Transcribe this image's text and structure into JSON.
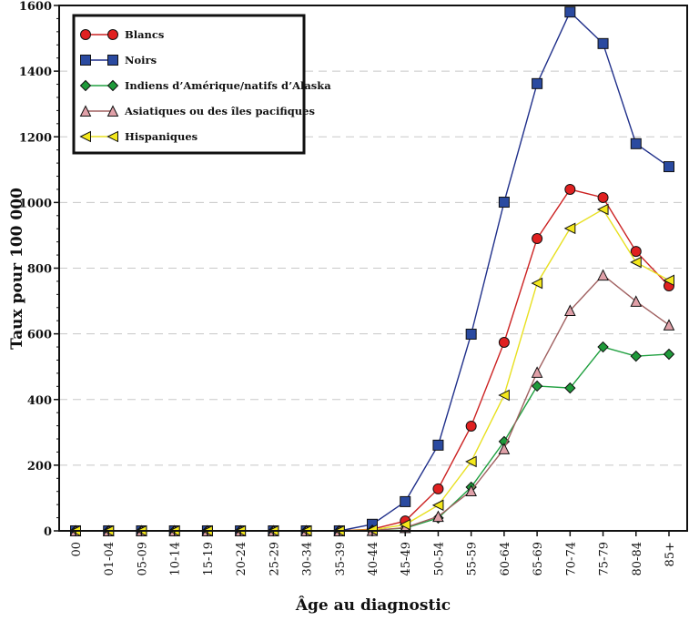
{
  "chart_data": {
    "type": "line",
    "title": "",
    "xlabel": "Âge au diagnostic",
    "ylabel": "Taux pour 100 000",
    "ylim": [
      0,
      1600
    ],
    "yticks": [
      0,
      200,
      400,
      600,
      800,
      1000,
      1200,
      1400,
      1600
    ],
    "grid": "horizontal dashed",
    "legend_position": "top-left",
    "categories": [
      "00",
      "01-04",
      "05-09",
      "10-14",
      "15-19",
      "20-24",
      "25-29",
      "30-34",
      "35-39",
      "40-44",
      "45-49",
      "50-54",
      "55-59",
      "60-64",
      "65-69",
      "70-74",
      "75-79",
      "80-84",
      "85+"
    ],
    "series": [
      {
        "name": "Blancs",
        "color": "#cc2222",
        "fill": "#e02020",
        "marker": "circle",
        "values": [
          0,
          0,
          0,
          0,
          0,
          0,
          0,
          0,
          0,
          5,
          30,
          128,
          319,
          574,
          890,
          1040,
          1015,
          851,
          746
        ]
      },
      {
        "name": "Noirs",
        "color": "#1f2f8a",
        "fill": "#2a4aa0",
        "marker": "square",
        "values": [
          0,
          0,
          0,
          0,
          0,
          0,
          0,
          0,
          0,
          20,
          89,
          261,
          599,
          1001,
          1362,
          1580,
          1484,
          1179,
          1109
        ]
      },
      {
        "name": "Indiens d’Amérique/natifs d’Alaska",
        "color": "#20a040",
        "fill": "#1f9a3a",
        "marker": "diamond",
        "values": [
          0,
          0,
          0,
          0,
          0,
          0,
          0,
          0,
          0,
          2,
          8,
          39,
          133,
          272,
          441,
          435,
          560,
          532,
          538
        ]
      },
      {
        "name": "Asiatiques ou des îles pacifiques",
        "color": "#a06060",
        "fill": "#e0a0a8",
        "marker": "triangle-up",
        "values": [
          0,
          0,
          0,
          0,
          0,
          0,
          0,
          0,
          0,
          1,
          10,
          44,
          122,
          250,
          483,
          671,
          779,
          699,
          627
        ]
      },
      {
        "name": "Hispaniques",
        "color": "#e8e020",
        "fill": "#f4e81c",
        "marker": "triangle-left",
        "values": [
          0,
          0,
          0,
          0,
          0,
          0,
          0,
          0,
          0,
          3,
          19,
          78,
          211,
          413,
          754,
          921,
          979,
          818,
          763
        ]
      }
    ]
  }
}
